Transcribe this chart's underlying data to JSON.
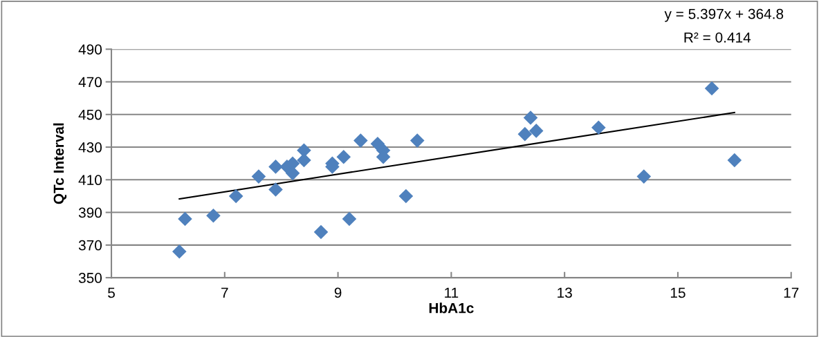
{
  "chart_data": {
    "type": "scatter",
    "xlabel": "HbA1c",
    "ylabel": "QTc Interval",
    "xlim": [
      5,
      17
    ],
    "xticks": [
      5,
      7,
      9,
      11,
      13,
      15,
      17
    ],
    "ylim": [
      350,
      490
    ],
    "yticks": [
      350,
      370,
      390,
      410,
      430,
      450,
      470,
      490
    ],
    "grid": "y",
    "marker": "diamond",
    "annotations": [
      "y = 5.397x + 364.8",
      "R² = 0.414"
    ],
    "series": [
      {
        "color": "#4f81bd",
        "x": [
          6.2,
          6.3,
          6.8,
          7.2,
          7.6,
          7.9,
          7.9,
          8.1,
          8.2,
          8.2,
          8.4,
          8.4,
          8.7,
          8.9,
          8.9,
          9.1,
          9.2,
          9.4,
          9.7,
          9.8,
          9.8,
          10.2,
          10.4,
          12.3,
          12.4,
          12.5,
          13.6,
          14.4,
          15.6,
          16.0
        ],
        "values": [
          366,
          386,
          388,
          400,
          412,
          418,
          404,
          418,
          420,
          414,
          428,
          422,
          378,
          420,
          418,
          424,
          386,
          434,
          432,
          428,
          424,
          400,
          434,
          438,
          448,
          440,
          442,
          412,
          466,
          422
        ]
      },
      {
        "type": "line",
        "marker": "none",
        "color": "#000000",
        "x": [
          6.2,
          16.0
        ],
        "values": [
          398.3,
          451.2
        ]
      }
    ]
  }
}
